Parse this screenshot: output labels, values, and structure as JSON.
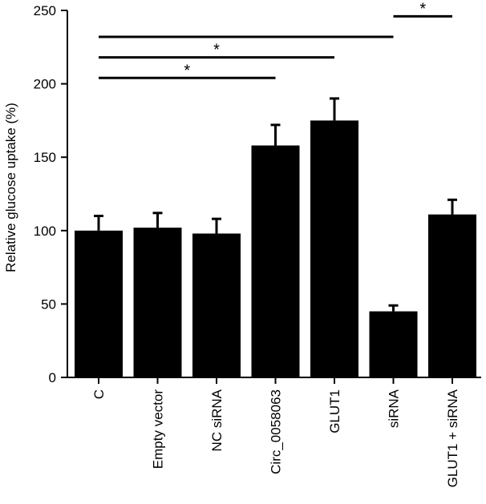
{
  "chart_data": {
    "type": "bar",
    "title": "",
    "xlabel": "",
    "ylabel": "Relative glucose uptake (%)",
    "categories": [
      "C",
      "Empty vector",
      "NC siRNA",
      "Circ_0058063",
      "GLUT1",
      "siRNA",
      "GLUT1 + siRNA"
    ],
    "values": [
      100,
      102,
      98,
      158,
      175,
      45,
      111
    ],
    "errors": [
      10,
      10,
      10,
      14,
      15,
      4,
      10
    ],
    "ylim": [
      0,
      250
    ],
    "yticks": [
      0,
      50,
      100,
      150,
      200,
      250
    ],
    "bar_color": "#000000",
    "grid": false,
    "legend": "none",
    "significance": [
      {
        "from": "C",
        "to": "Circ_0058063",
        "label": "*",
        "level": 204
      },
      {
        "from": "C",
        "to": "GLUT1",
        "label": "*",
        "level": 218
      },
      {
        "from": "C",
        "to": "siRNA",
        "label": "",
        "level": 232
      },
      {
        "from": "siRNA",
        "to": "GLUT1 + siRNA",
        "label": "*",
        "level": 246
      }
    ]
  }
}
